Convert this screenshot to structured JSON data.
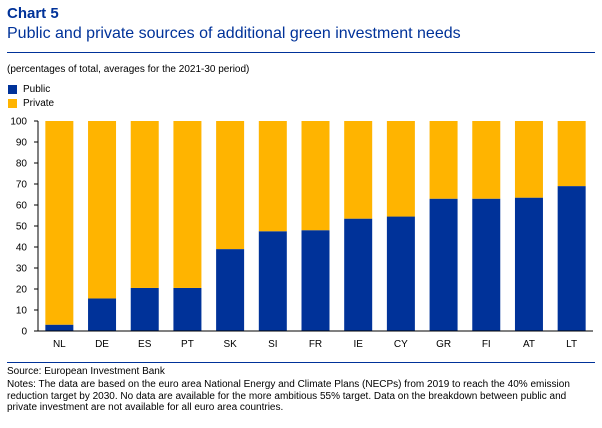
{
  "header": {
    "chart_label": "Chart 5",
    "title": "Public and private sources of additional green investment needs",
    "subtitle": "(percentages of total, averages for the 2021-30 period)"
  },
  "chart_data": {
    "type": "bar",
    "stacked": true,
    "categories": [
      "NL",
      "DE",
      "ES",
      "PT",
      "SK",
      "SI",
      "FR",
      "IE",
      "CY",
      "GR",
      "FI",
      "AT",
      "LT"
    ],
    "series": [
      {
        "name": "Public",
        "color": "#003299",
        "values": [
          3,
          15.5,
          20.5,
          20.5,
          39,
          47.5,
          48,
          53.5,
          54.5,
          63,
          63,
          63.5,
          69
        ]
      },
      {
        "name": "Private",
        "color": "#FFB400",
        "values": [
          97,
          84.5,
          79.5,
          79.5,
          61,
          52.5,
          52,
          46.5,
          45.5,
          37,
          37,
          36.5,
          31
        ]
      }
    ],
    "ylim": [
      0,
      100
    ],
    "yticks": [
      0,
      10,
      20,
      30,
      40,
      50,
      60,
      70,
      80,
      90,
      100
    ],
    "xlabel": "",
    "ylabel": "",
    "legend_position": "top-left",
    "grid": false
  },
  "footer": {
    "source": "Source: European Investment Bank",
    "notes": "Notes: The data are based on the euro area National Energy and Climate Plans (NECPs) from 2019 to reach the 40% emission reduction target by 2030. No data are available for the more ambitious 55% target. Data on the breakdown between public and private investment are not available for all euro area countries."
  }
}
